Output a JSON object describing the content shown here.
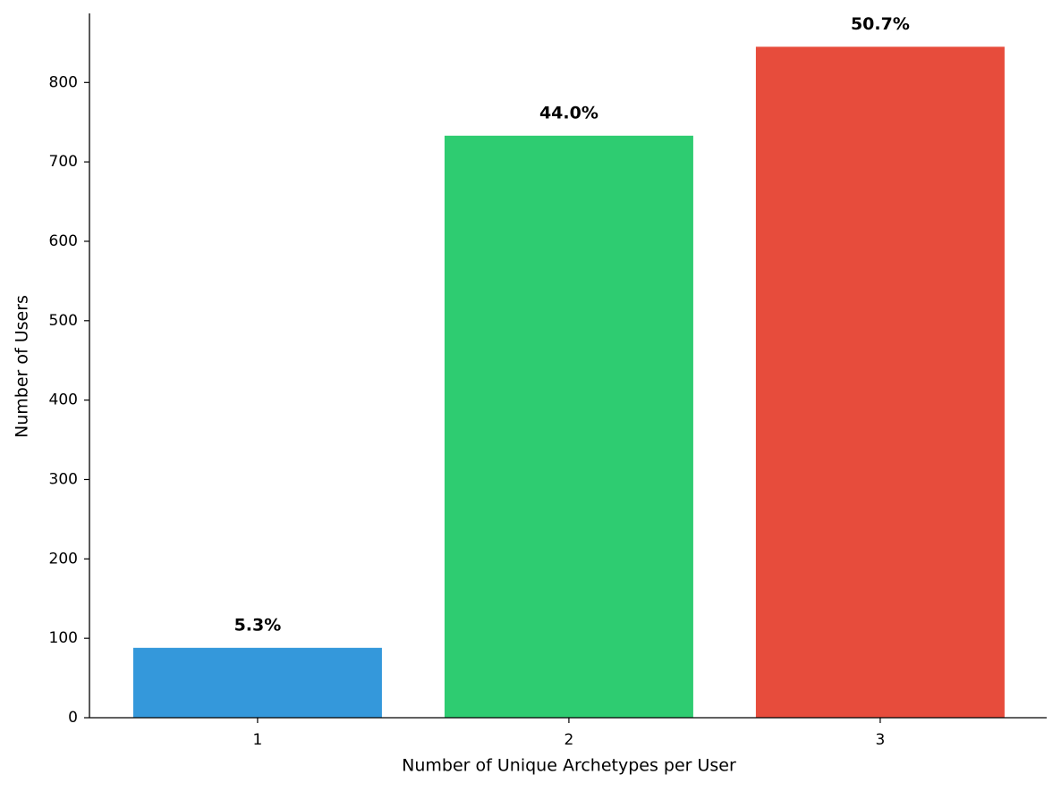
{
  "chart_data": {
    "type": "bar",
    "x_label": "Number of Unique Archetypes per User",
    "y_label": "Number of Users",
    "categories": [
      "1",
      "2",
      "3"
    ],
    "values": [
      88,
      733,
      845
    ],
    "share_labels": [
      "5.3%",
      "44.0%",
      "50.7%"
    ],
    "colors": [
      "#3498db",
      "#2ecc71",
      "#e74c3c"
    ],
    "ylim": [
      0,
      887
    ],
    "yticks": [
      0,
      100,
      200,
      300,
      400,
      500,
      600,
      700,
      800
    ],
    "grid": false
  }
}
